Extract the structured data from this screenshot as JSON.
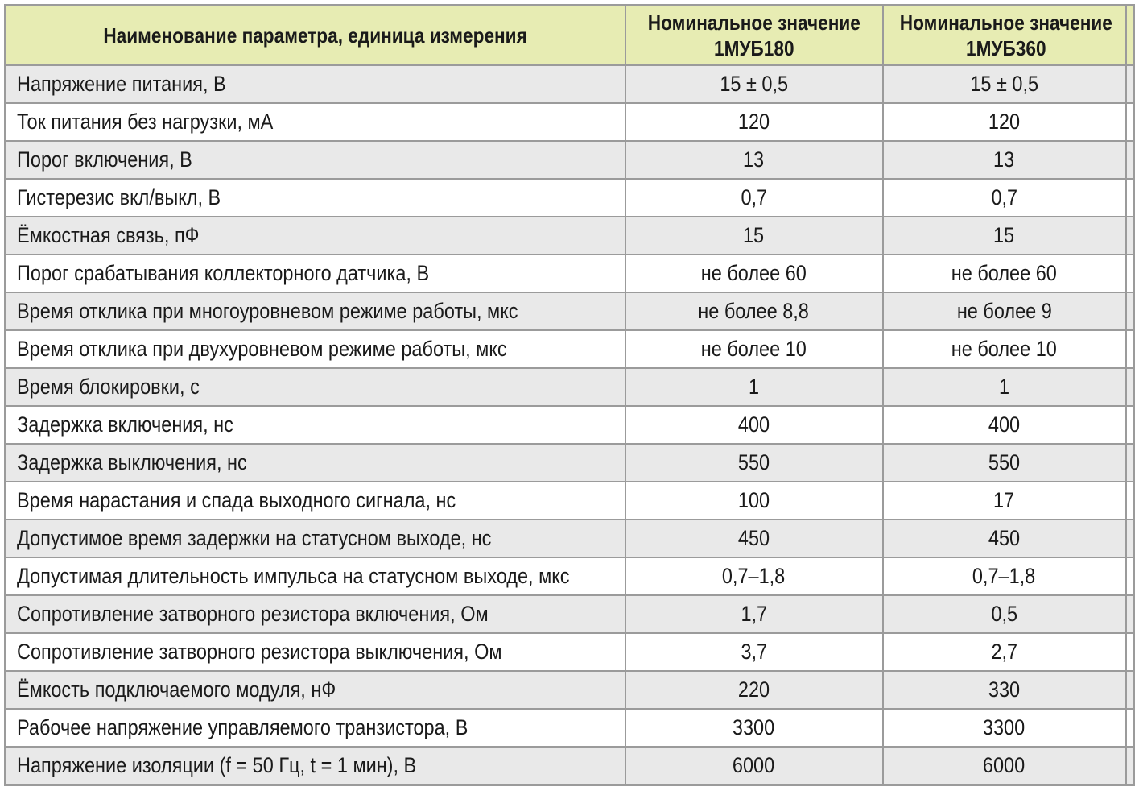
{
  "header": {
    "param_column": "Наименование параметра, единица измерения",
    "value_columns": [
      {
        "line1": "Номинальное значение",
        "line2": "1МУБ180"
      },
      {
        "line1": "Номинальное значение",
        "line2": "1МУБ360"
      }
    ]
  },
  "rows": [
    {
      "param": "Напряжение питания, В",
      "mub180": "15 ± 0,5",
      "mub360": "15 ± 0,5"
    },
    {
      "param": "Ток питания без нагрузки, мА",
      "mub180": "120",
      "mub360": "120"
    },
    {
      "param": "Порог включения, В",
      "mub180": "13",
      "mub360": "13"
    },
    {
      "param": "Гистерезис вкл/выкл, В",
      "mub180": "0,7",
      "mub360": "0,7"
    },
    {
      "param": "Ёмкостная связь, пФ",
      "mub180": "15",
      "mub360": "15"
    },
    {
      "param": "Порог срабатывания коллекторного датчика, В",
      "mub180": "не более 60",
      "mub360": "не более 60"
    },
    {
      "param": "Время отклика при многоуровневом режиме работы, мкс",
      "mub180": "не более 8,8",
      "mub360": "не более 9"
    },
    {
      "param": "Время отклика при двухуровневом режиме работы, мкс",
      "mub180": "не более 10",
      "mub360": "не более 10"
    },
    {
      "param": "Время блокировки, с",
      "mub180": "1",
      "mub360": "1"
    },
    {
      "param": "Задержка включения, нс",
      "mub180": "400",
      "mub360": "400"
    },
    {
      "param": "Задержка выключения, нс",
      "mub180": "550",
      "mub360": "550"
    },
    {
      "param": "Время нарастания и спада выходного сигнала, нс",
      "mub180": "100",
      "mub360": "17"
    },
    {
      "param": "Допустимое время задержки на статусном выходе, нс",
      "mub180": "450",
      "mub360": "450"
    },
    {
      "param": "Допустимая длительность импульса на статусном выходе, мкс",
      "mub180": "0,7–1,8",
      "mub360": "0,7–1,8"
    },
    {
      "param": "Сопротивление затворного резистора включения, Ом",
      "mub180": "1,7",
      "mub360": "0,5"
    },
    {
      "param": "Сопротивление затворного резистора выключения, Ом",
      "mub180": "3,7",
      "mub360": "2,7"
    },
    {
      "param": "Ёмкость подключаемого модуля, нФ",
      "mub180": "220",
      "mub360": "330"
    },
    {
      "param": "Рабочее напряжение управляемого транзистора, В",
      "mub180": "3300",
      "mub360": "3300"
    },
    {
      "param": "Напряжение изоляции (f = 50 Гц, t = 1 мин), В",
      "mub180": "6000",
      "mub360": "6000"
    }
  ],
  "colors": {
    "header_bg": "#e7ecb3",
    "row_alt_bg": "#e9e9e9",
    "row_bg": "#ffffff",
    "border": "#9b9b9b",
    "text": "#1a1a1a"
  }
}
